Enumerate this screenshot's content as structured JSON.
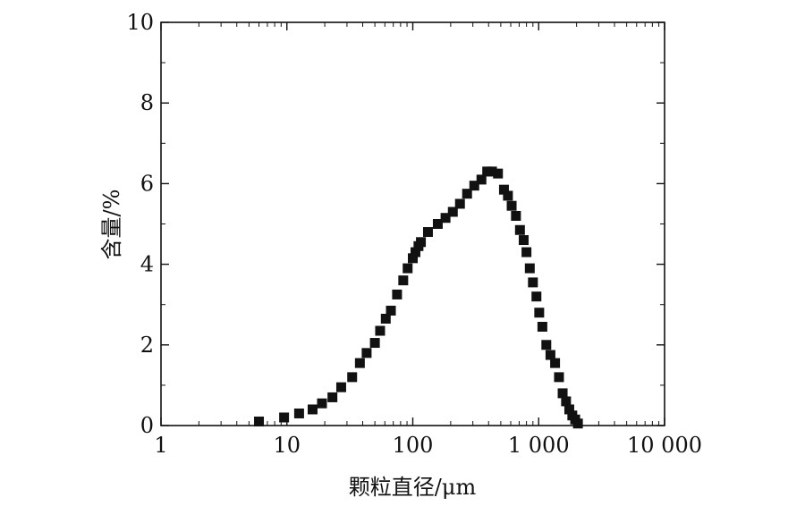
{
  "chart_data": {
    "type": "scatter",
    "xlabel": "颗粒直径/μm",
    "ylabel": "含量/%",
    "x_scale": "log",
    "xlim": [
      1,
      10000
    ],
    "ylim": [
      0,
      10
    ],
    "x_ticks": [
      1,
      10,
      100,
      1000,
      10000
    ],
    "x_tick_labels": [
      "1",
      "10",
      "100",
      "1 000",
      "10 000"
    ],
    "y_ticks": [
      0,
      2,
      4,
      6,
      8,
      10
    ],
    "y_tick_labels": [
      "0",
      "2",
      "4",
      "6",
      "8",
      "10"
    ],
    "grid": false,
    "marker": "square",
    "marker_color": "#111111",
    "series": [
      {
        "x": [
          6,
          9.5,
          12.5,
          16,
          19,
          23,
          27,
          33,
          38,
          43,
          50,
          55,
          61,
          67,
          75,
          84,
          91,
          100,
          105,
          111,
          116,
          132,
          158,
          182,
          208,
          237,
          270,
          308,
          351,
          390,
          426,
          475,
          530,
          570,
          610,
          660,
          710,
          760,
          800,
          850,
          900,
          960,
          1010,
          1070,
          1150,
          1240,
          1350,
          1450,
          1550,
          1650,
          1750,
          1850,
          1950,
          2050
        ],
        "y": [
          0.1,
          0.2,
          0.3,
          0.4,
          0.55,
          0.7,
          0.95,
          1.2,
          1.55,
          1.8,
          2.05,
          2.35,
          2.65,
          2.85,
          3.25,
          3.6,
          3.9,
          4.15,
          4.3,
          4.45,
          4.55,
          4.8,
          5.0,
          5.15,
          5.3,
          5.5,
          5.75,
          5.95,
          6.1,
          6.3,
          6.3,
          6.25,
          5.85,
          5.7,
          5.45,
          5.2,
          4.85,
          4.6,
          4.3,
          3.9,
          3.55,
          3.2,
          2.8,
          2.45,
          2.0,
          1.75,
          1.55,
          1.2,
          0.8,
          0.6,
          0.4,
          0.25,
          0.15,
          0.05
        ]
      }
    ]
  }
}
